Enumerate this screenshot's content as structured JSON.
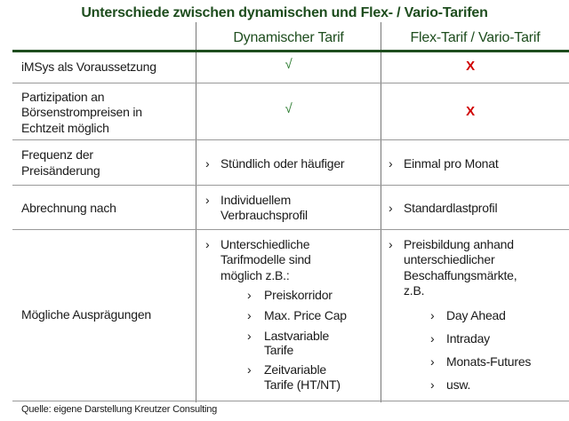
{
  "title": "Unterschiede zwischen dynamischen und Flex- / Vario-Tarifen",
  "headers": [
    "",
    "Dynamischer Tarif",
    "Flex-Tarif / Vario-Tarif"
  ],
  "colors": {
    "accent": "#1e4d1e",
    "check": "#2e7d32",
    "cross": "#d00000"
  },
  "bullet": "›",
  "rows": [
    {
      "label": [
        "iMSys als Voraussetzung"
      ],
      "dyn": "√",
      "flex": "X"
    },
    {
      "label": [
        "Partizipation an",
        "Börsenstrompreisen in",
        "Echtzeit möglich"
      ],
      "dyn": "√",
      "flex": "X"
    },
    {
      "label": [
        "Frequenz der",
        "Preisänderung"
      ],
      "dyn": "Stündlich oder häufiger",
      "flex": "Einmal pro Monat"
    },
    {
      "label": [
        "Abrechnung nach"
      ],
      "dyn": [
        "Individuellem",
        "Verbrauchsprofil"
      ],
      "flex": "Standardlastprofil"
    },
    {
      "label": [
        "Mögliche Ausprägungen"
      ],
      "dyn": {
        "intro": [
          "Unterschiedliche",
          "Tarifmodelle sind",
          "möglich z.B.:"
        ],
        "items": [
          [
            "Preiskorridor"
          ],
          [
            "Max. Price Cap"
          ],
          [
            "Lastvariable",
            "Tarife"
          ],
          [
            "Zeitvariable",
            "Tarife (HT/NT)"
          ]
        ]
      },
      "flex": {
        "intro": [
          "Preisbildung anhand",
          "unterschiedlicher",
          "Beschaffungsmärkte,",
          "z.B."
        ],
        "items": [
          "Day Ahead",
          "Intraday",
          "Monats-Futures",
          "usw."
        ]
      }
    }
  ],
  "source": "Quelle: eigene Darstellung Kreutzer Consulting"
}
